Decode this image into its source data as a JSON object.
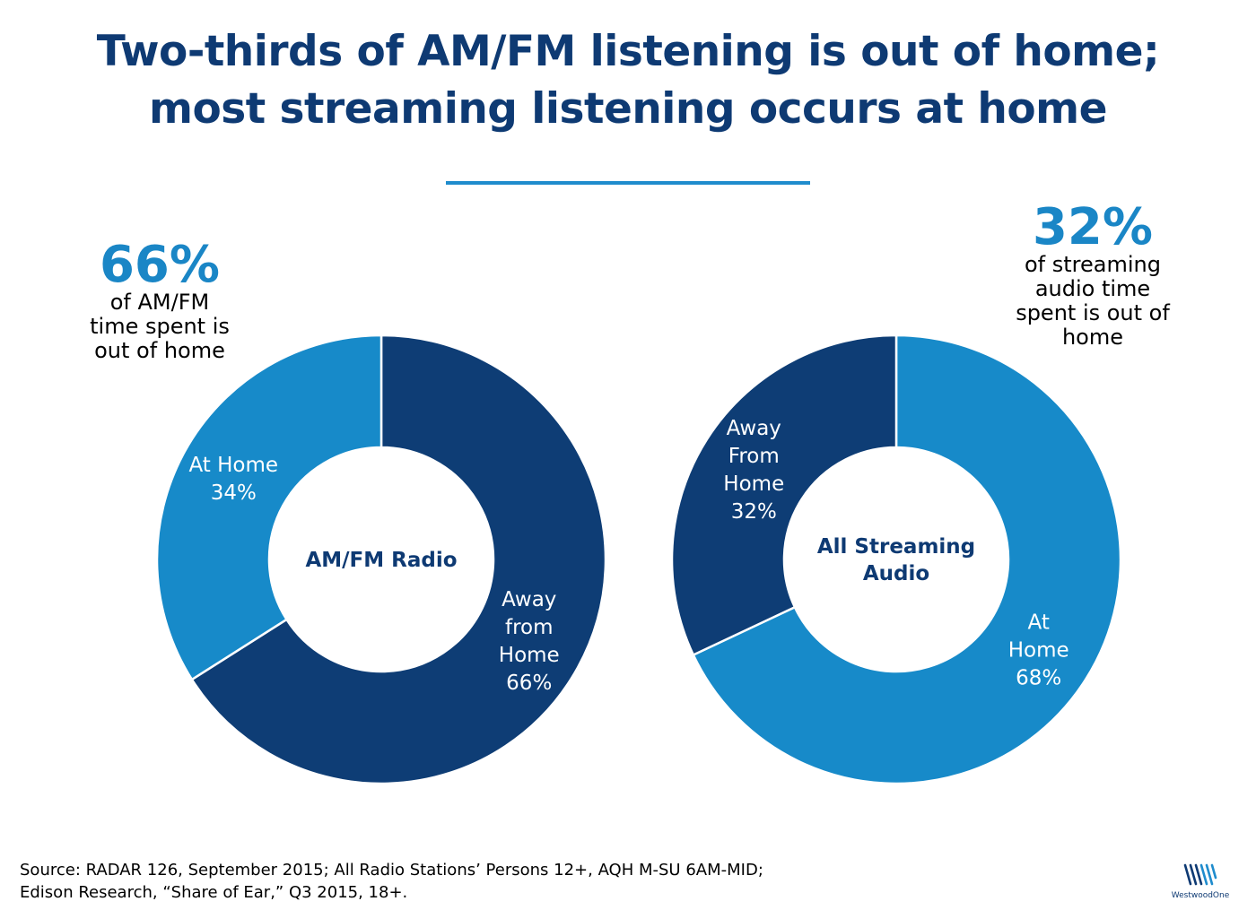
{
  "title": {
    "line1": "Two-thirds of AM/FM listening is out of home;",
    "line2": "most streaming listening occurs at home"
  },
  "callouts": {
    "left": {
      "value": "66%",
      "lines": [
        "of AM/FM",
        "time spent is",
        "out of home"
      ]
    },
    "right": {
      "value": "32%",
      "lines": [
        "of streaming",
        "audio time",
        "spent is out of",
        "home"
      ]
    }
  },
  "colors": {
    "dark_blue": "#0e3d75",
    "light_blue": "#178ac9",
    "title": "#0e3a73",
    "accent": "#1a86c6"
  },
  "chart_data": [
    {
      "type": "pie",
      "donut": true,
      "center_label": [
        "AM/FM Radio"
      ],
      "slices": [
        {
          "label": [
            "Away",
            "from",
            "Home",
            "66%"
          ],
          "value": 66,
          "color": "#0e3d75"
        },
        {
          "label": [
            "At Home",
            "34%"
          ],
          "value": 34,
          "color": "#178ac9"
        }
      ]
    },
    {
      "type": "pie",
      "donut": true,
      "center_label": [
        "All Streaming",
        "Audio"
      ],
      "slices": [
        {
          "label": [
            "At",
            "Home",
            "68%"
          ],
          "value": 68,
          "color": "#178ac9"
        },
        {
          "label": [
            "Away",
            "From",
            "Home",
            "32%"
          ],
          "value": 32,
          "color": "#0e3d75"
        }
      ]
    }
  ],
  "source": {
    "line1": "Source: RADAR 126, September 2015; All Radio Stations’ Persons 12+, AQH M-SU 6AM-MID;",
    "line2": "Edison Research, “Share of Ear,” Q3 2015, 18+."
  },
  "logo": {
    "text": "WestwoodOne",
    "icon": "westwood-one-logo-icon"
  }
}
